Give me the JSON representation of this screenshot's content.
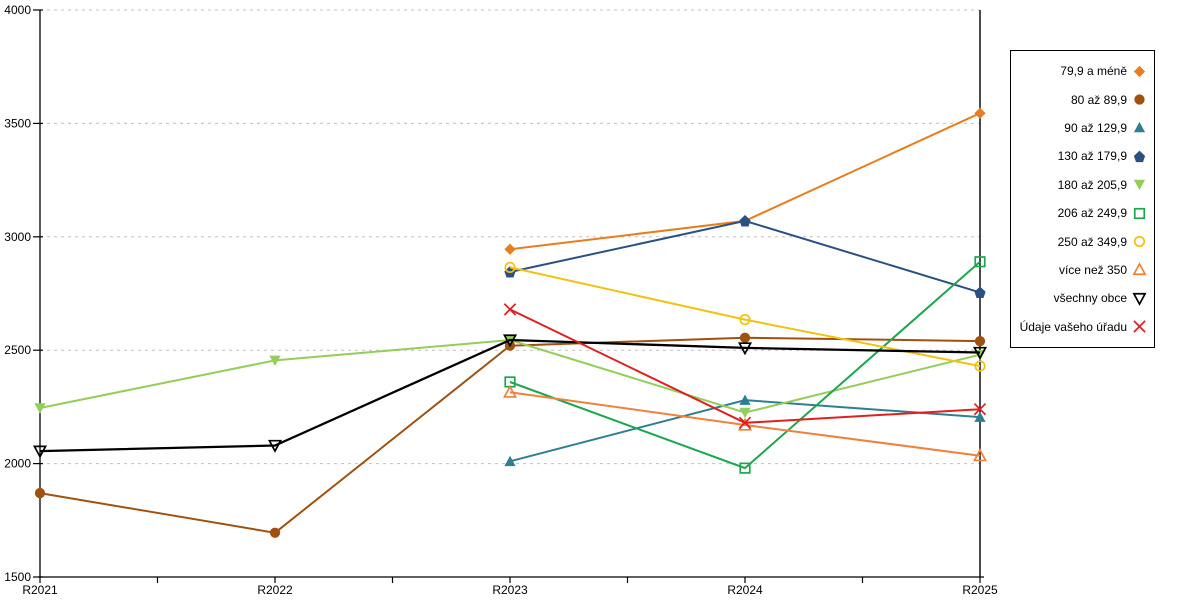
{
  "chart_data": {
    "type": "line",
    "title": "",
    "xlabel": "",
    "ylabel": "",
    "categories": [
      "R2021",
      "R2022",
      "R2023",
      "R2024",
      "R2025"
    ],
    "ylim": [
      1500,
      4000
    ],
    "yticks": [
      1500,
      2000,
      2500,
      3000,
      3500,
      4000
    ],
    "grid": "horizontal-dashed",
    "legend_position": "right",
    "gridline_color": "#C0C0C0",
    "axis_color": "#000000",
    "series": [
      {
        "name": "79,9 a méně",
        "shape": "diamond",
        "color": "#E87D1E",
        "values": [
          null,
          null,
          2945,
          3070,
          3545
        ]
      },
      {
        "name": "80 až 89,9",
        "shape": "circle",
        "color": "#A0510F",
        "values": [
          1870,
          1695,
          2520,
          2555,
          2540
        ]
      },
      {
        "name": "90 až 129,9",
        "shape": "triangle-up",
        "color": "#2E7F93",
        "values": [
          null,
          null,
          2010,
          2280,
          2205
        ]
      },
      {
        "name": "130 až 179,9",
        "shape": "pentagon",
        "color": "#2B5183",
        "values": [
          null,
          null,
          2845,
          3070,
          2755
        ]
      },
      {
        "name": "180 až 205,9",
        "shape": "triangle-down",
        "color": "#92CE58",
        "values": [
          2245,
          2455,
          2545,
          2225,
          2480
        ]
      },
      {
        "name": "206 až 249,9",
        "shape": "square-open",
        "color": "#1CA64E",
        "values": [
          null,
          null,
          2360,
          1980,
          2890
        ]
      },
      {
        "name": "250 až 349,9",
        "shape": "circle-open",
        "color": "#F2C211",
        "values": [
          null,
          null,
          2865,
          2635,
          2430
        ]
      },
      {
        "name": "více než 350",
        "shape": "triangle-up-open",
        "color": "#F0813C",
        "values": [
          null,
          null,
          2315,
          2170,
          2035
        ]
      },
      {
        "name": "všechny obce",
        "shape": "triangle-down-open",
        "color": "#000000",
        "values": [
          2055,
          2080,
          2545,
          2510,
          2490
        ]
      },
      {
        "name": "Údaje vašeho úřadu",
        "shape": "x",
        "color": "#E02020",
        "values": [
          null,
          null,
          2680,
          2180,
          2240
        ]
      }
    ]
  }
}
